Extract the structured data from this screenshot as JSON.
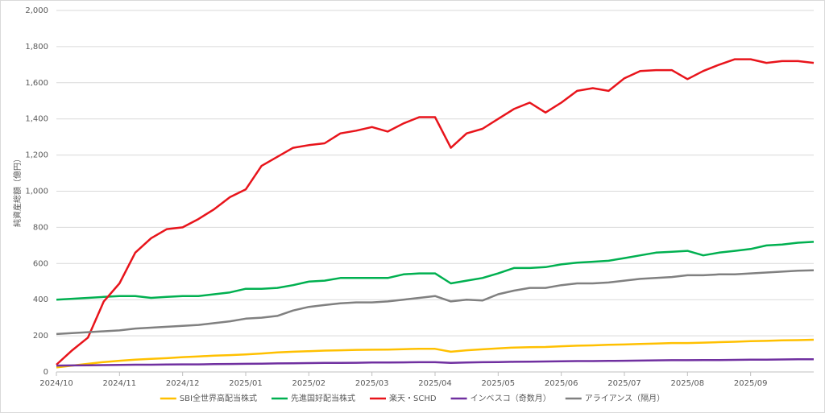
{
  "chart_data": {
    "type": "line",
    "y_label": "純資産総額（億円）",
    "categories": [
      "2024/10",
      null,
      null,
      null,
      "2024/11",
      null,
      null,
      null,
      "2024/12",
      null,
      null,
      null,
      "2025/01",
      null,
      null,
      null,
      "2025/02",
      null,
      null,
      null,
      "2025/03",
      null,
      null,
      null,
      "2025/04",
      null,
      null,
      null,
      "2025/05",
      null,
      null,
      null,
      "2025/06",
      null,
      null,
      null,
      "2025/07",
      null,
      null,
      null,
      "2025/08",
      null,
      null,
      null,
      "2025/09",
      null,
      null,
      null,
      null
    ],
    "ylim": [
      0,
      2000
    ],
    "yticks": [
      0,
      200,
      400,
      600,
      800,
      {
        "value": 1000,
        "label": "1,000"
      },
      {
        "value": 1200,
        "label": "1,200"
      },
      {
        "value": 1400,
        "label": "1,400"
      },
      {
        "value": 1600,
        "label": "1,600"
      },
      {
        "value": 1800,
        "label": "1,800"
      },
      {
        "value": 2000,
        "label": "2,000"
      }
    ],
    "grid": true,
    "legend": "bottom",
    "series": [
      {
        "name": "SBI全世界高配当株式",
        "color": "#ffc000",
        "values": [
          25,
          35,
          45,
          55,
          62,
          68,
          72,
          76,
          82,
          86,
          90,
          93,
          97,
          102,
          108,
          112,
          115,
          118,
          120,
          122,
          123,
          124,
          126,
          128,
          128,
          112,
          120,
          125,
          130,
          135,
          137,
          138,
          142,
          145,
          147,
          150,
          152,
          155,
          157,
          160,
          160,
          162,
          165,
          167,
          170,
          172,
          175,
          176,
          178
        ]
      },
      {
        "name": "先進国好配当株式",
        "color": "#00b050",
        "values": [
          400,
          405,
          410,
          415,
          420,
          420,
          410,
          415,
          420,
          420,
          430,
          440,
          460,
          460,
          465,
          480,
          500,
          505,
          520,
          520,
          520,
          520,
          540,
          545,
          545,
          490,
          505,
          520,
          545,
          575,
          575,
          580,
          595,
          605,
          610,
          615,
          630,
          645,
          660,
          665,
          670,
          645,
          660,
          670,
          680,
          700,
          705,
          715,
          720
        ]
      },
      {
        "name": "楽天・SCHD",
        "color": "#e8141b",
        "values": [
          40,
          120,
          190,
          390,
          490,
          660,
          740,
          790,
          800,
          846,
          900,
          967,
          1010,
          1140,
          1190,
          1240,
          1255,
          1265,
          1320,
          1335,
          1355,
          1330,
          1375,
          1410,
          1410,
          1240,
          1320,
          1345,
          1400,
          1455,
          1490,
          1435,
          1490,
          1555,
          1570,
          1555,
          1625,
          1665,
          1670,
          1670,
          1620,
          1665,
          1700,
          1730,
          1730,
          1710,
          1720,
          1720,
          1710
        ]
      },
      {
        "name": "インベスコ（奇数月）",
        "color": "#7030a0",
        "values": [
          35,
          36,
          37,
          38,
          39,
          40,
          40,
          41,
          42,
          42,
          43,
          44,
          45,
          46,
          47,
          48,
          49,
          50,
          50,
          51,
          52,
          52,
          53,
          54,
          54,
          50,
          52,
          54,
          55,
          56,
          57,
          58,
          59,
          60,
          60,
          61,
          62,
          63,
          64,
          65,
          65,
          66,
          66,
          67,
          68,
          68,
          69,
          70,
          70
        ]
      },
      {
        "name": "アライアンス（隔月）",
        "color": "#808080",
        "values": [
          210,
          215,
          220,
          225,
          230,
          240,
          245,
          250,
          255,
          260,
          270,
          280,
          295,
          300,
          310,
          340,
          360,
          370,
          380,
          385,
          385,
          390,
          400,
          410,
          420,
          390,
          400,
          395,
          430,
          450,
          465,
          465,
          480,
          490,
          490,
          495,
          505,
          515,
          520,
          525,
          535,
          535,
          540,
          540,
          545,
          550,
          555,
          560,
          562
        ]
      }
    ]
  }
}
